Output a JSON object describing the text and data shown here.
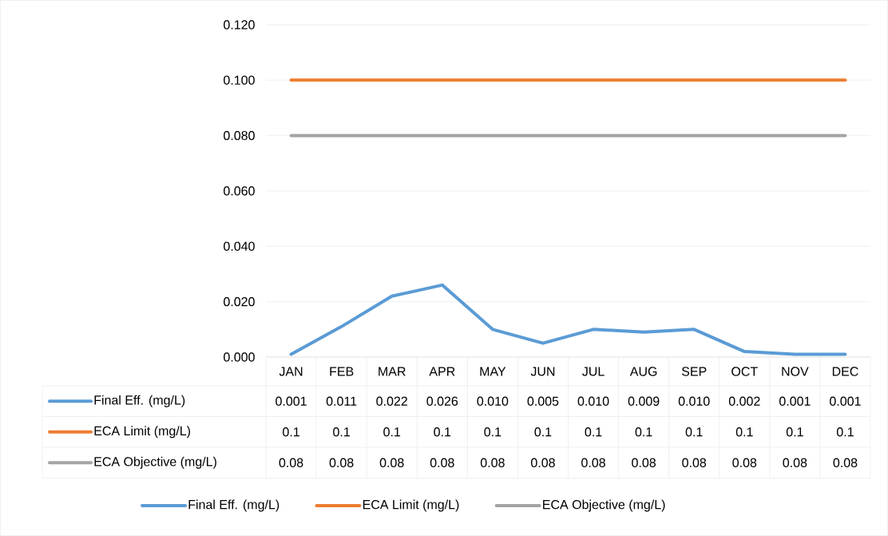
{
  "chart_data": {
    "type": "line",
    "categories": [
      "JAN",
      "FEB",
      "MAR",
      "APR",
      "MAY",
      "JUN",
      "JUL",
      "AUG",
      "SEP",
      "OCT",
      "NOV",
      "DEC"
    ],
    "series": [
      {
        "name": "Final Eff. (mg/L)",
        "color": "#5b9bd5",
        "values": [
          0.001,
          0.011,
          0.022,
          0.026,
          0.01,
          0.005,
          0.01,
          0.009,
          0.01,
          0.002,
          0.001,
          0.001
        ],
        "value_labels": [
          "0.001",
          "0.011",
          "0.022",
          "0.026",
          "0.010",
          "0.005",
          "0.010",
          "0.009",
          "0.010",
          "0.002",
          "0.001",
          "0.001"
        ]
      },
      {
        "name": "ECA Limit (mg/L)",
        "color": "#ed7d31",
        "values": [
          0.1,
          0.1,
          0.1,
          0.1,
          0.1,
          0.1,
          0.1,
          0.1,
          0.1,
          0.1,
          0.1,
          0.1
        ],
        "value_labels": [
          "0.1",
          "0.1",
          "0.1",
          "0.1",
          "0.1",
          "0.1",
          "0.1",
          "0.1",
          "0.1",
          "0.1",
          "0.1",
          "0.1"
        ]
      },
      {
        "name": "ECA Objective (mg/L)",
        "color": "#a5a5a5",
        "values": [
          0.08,
          0.08,
          0.08,
          0.08,
          0.08,
          0.08,
          0.08,
          0.08,
          0.08,
          0.08,
          0.08,
          0.08
        ],
        "value_labels": [
          "0.08",
          "0.08",
          "0.08",
          "0.08",
          "0.08",
          "0.08",
          "0.08",
          "0.08",
          "0.08",
          "0.08",
          "0.08",
          "0.08"
        ]
      }
    ],
    "ylim": [
      0,
      0.12
    ],
    "yticks": [
      {
        "value": 0,
        "label": "0.000"
      },
      {
        "value": 0.02,
        "label": "0.020"
      },
      {
        "value": 0.04,
        "label": "0.040"
      },
      {
        "value": 0.06,
        "label": "0.060"
      },
      {
        "value": 0.08,
        "label": "0.080"
      },
      {
        "value": 0.1,
        "label": "0.100"
      },
      {
        "value": 0.12,
        "label": "0.120"
      }
    ],
    "grid": "y",
    "legend": "bottom",
    "marker": "none",
    "line_style": "solid"
  }
}
